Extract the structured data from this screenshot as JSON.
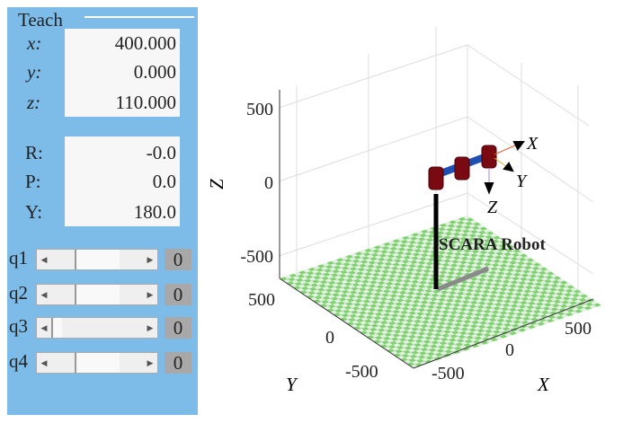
{
  "teach": {
    "title": "Teach",
    "position": [
      {
        "label": "x:",
        "value": "400.000"
      },
      {
        "label": "y:",
        "value": "0.000"
      },
      {
        "label": "z:",
        "value": "110.000"
      }
    ],
    "orientation": [
      {
        "label": "R:",
        "value": "-0.0"
      },
      {
        "label": "P:",
        "value": "0.0"
      },
      {
        "label": "Y:",
        "value": "180.0"
      }
    ],
    "joints": [
      {
        "label": "q1",
        "value": "0",
        "fraction": 0.5
      },
      {
        "label": "q2",
        "value": "0",
        "fraction": 0.5
      },
      {
        "label": "q3",
        "value": "0",
        "fraction": 0.0
      },
      {
        "label": "q4",
        "value": "0",
        "fraction": 0.5
      }
    ],
    "arrow_left": "◀",
    "arrow_right": "▶"
  },
  "plot": {
    "zlabel": "Z",
    "ylabel": "Y",
    "xlabel": "X",
    "zticks": [
      "500",
      "0",
      "-500"
    ],
    "yticks": [
      "500",
      "0",
      "-500"
    ],
    "xticks": [
      "-500",
      "0",
      "500"
    ],
    "robot_name": "SCARA Robot",
    "frame_labels": {
      "x": "X",
      "y": "Y",
      "z": "Z"
    },
    "colors": {
      "floor_green": "#7fd36e",
      "floor_light": "#e6efe6",
      "link": "#1f4fb0",
      "joint": "#7a0a12",
      "column": "#000000",
      "shadow": "#8a8a8a",
      "panel": "#7dbbe8"
    }
  }
}
